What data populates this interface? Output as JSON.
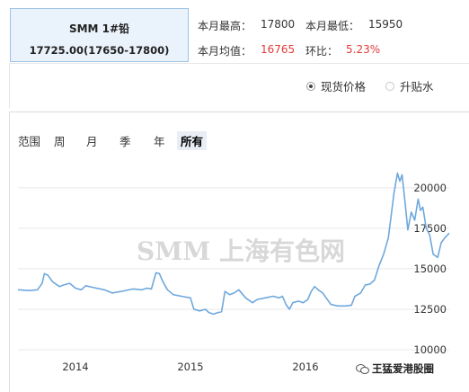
{
  "quote": {
    "name": "SMM 1#铅",
    "price": "17725.00(17650-17800)"
  },
  "stats": {
    "high_label": "本月最高：",
    "high_value": "17800",
    "low_label": "本月最低：",
    "low_value": "15950",
    "avg_label": "本月均值：",
    "avg_value": "16765",
    "mom_label": "环比：",
    "mom_value": "5.23%"
  },
  "price_type": {
    "options": [
      "现货价格",
      "升贴水"
    ],
    "selected": "现货价格"
  },
  "range": {
    "label": "范围",
    "options": [
      "周",
      "月",
      "季",
      "年",
      "所有"
    ],
    "selected": "所有"
  },
  "watermark": "SMM 上海有色网",
  "credit": "王猛爱港股圈",
  "colors": {
    "line": "#6fa8dc",
    "accent_red": "#e03a3a",
    "selected_bg": "#e9eef5"
  },
  "chart_data": {
    "type": "line",
    "title": "",
    "xlabel": "",
    "ylabel": "",
    "y_ticks": [
      10000,
      12500,
      15000,
      17500,
      20000
    ],
    "x_ticks": [
      "2014",
      "2015",
      "2016"
    ],
    "ylim": [
      9500,
      21600
    ],
    "xlim": [
      2013.5,
      2017.25
    ],
    "grid": "horizontal",
    "series": [
      {
        "name": "",
        "points": [
          [
            2013.5,
            13700
          ],
          [
            2013.6,
            13650
          ],
          [
            2013.67,
            13700
          ],
          [
            2013.71,
            14100
          ],
          [
            2013.73,
            14700
          ],
          [
            2013.76,
            14600
          ],
          [
            2013.8,
            14200
          ],
          [
            2013.86,
            13900
          ],
          [
            2013.9,
            14000
          ],
          [
            2013.95,
            14100
          ],
          [
            2014.0,
            13800
          ],
          [
            2014.05,
            13700
          ],
          [
            2014.09,
            13950
          ],
          [
            2014.15,
            13850
          ],
          [
            2014.25,
            13700
          ],
          [
            2014.32,
            13500
          ],
          [
            2014.4,
            13600
          ],
          [
            2014.5,
            13750
          ],
          [
            2014.58,
            13700
          ],
          [
            2014.62,
            13800
          ],
          [
            2014.66,
            13750
          ],
          [
            2014.7,
            14750
          ],
          [
            2014.73,
            14700
          ],
          [
            2014.76,
            14200
          ],
          [
            2014.8,
            13700
          ],
          [
            2014.85,
            13400
          ],
          [
            2014.92,
            13300
          ],
          [
            2015.0,
            13200
          ],
          [
            2015.03,
            12500
          ],
          [
            2015.08,
            12400
          ],
          [
            2015.13,
            12500
          ],
          [
            2015.16,
            12300
          ],
          [
            2015.2,
            12200
          ],
          [
            2015.24,
            12300
          ],
          [
            2015.27,
            12350
          ],
          [
            2015.3,
            13600
          ],
          [
            2015.34,
            13400
          ],
          [
            2015.38,
            13500
          ],
          [
            2015.42,
            13700
          ],
          [
            2015.48,
            13200
          ],
          [
            2015.54,
            12900
          ],
          [
            2015.58,
            13100
          ],
          [
            2015.65,
            13200
          ],
          [
            2015.72,
            13300
          ],
          [
            2015.77,
            13200
          ],
          [
            2015.8,
            13300
          ],
          [
            2015.83,
            12800
          ],
          [
            2015.86,
            12500
          ],
          [
            2015.89,
            12900
          ],
          [
            2015.94,
            13000
          ],
          [
            2015.98,
            12900
          ],
          [
            2016.02,
            13100
          ],
          [
            2016.05,
            13600
          ],
          [
            2016.08,
            13900
          ],
          [
            2016.11,
            13700
          ],
          [
            2016.15,
            13500
          ],
          [
            2016.18,
            13200
          ],
          [
            2016.22,
            12800
          ],
          [
            2016.28,
            12700
          ],
          [
            2016.35,
            12700
          ],
          [
            2016.4,
            12750
          ],
          [
            2016.43,
            13300
          ],
          [
            2016.48,
            13500
          ],
          [
            2016.52,
            14000
          ],
          [
            2016.56,
            14050
          ],
          [
            2016.6,
            14300
          ],
          [
            2016.64,
            15200
          ],
          [
            2016.68,
            15900
          ],
          [
            2016.72,
            16900
          ],
          [
            2016.77,
            19700
          ],
          [
            2016.8,
            20900
          ],
          [
            2016.82,
            20400
          ],
          [
            2016.84,
            20800
          ],
          [
            2016.87,
            18800
          ],
          [
            2016.89,
            17400
          ],
          [
            2016.92,
            18500
          ],
          [
            2016.95,
            18000
          ],
          [
            2016.98,
            19300
          ],
          [
            2017.0,
            18600
          ],
          [
            2017.02,
            18800
          ],
          [
            2017.05,
            17500
          ],
          [
            2017.08,
            17100
          ],
          [
            2017.11,
            15900
          ],
          [
            2017.15,
            15700
          ],
          [
            2017.18,
            16600
          ],
          [
            2017.21,
            16900
          ],
          [
            2017.25,
            17200
          ]
        ]
      }
    ]
  }
}
